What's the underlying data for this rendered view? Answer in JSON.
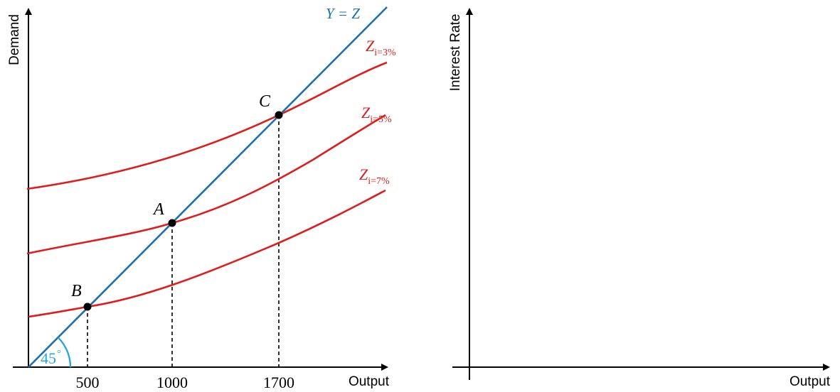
{
  "colors": {
    "demand_curve": "#dc1e1e",
    "line_45": "#1f6fb0",
    "angle_arc": "#2aa7d8",
    "axes": "#000000"
  },
  "left_panel": {
    "ylabel": "Demand",
    "xlabel": "Output",
    "line_label": "Y = Z",
    "angle_label": "45",
    "angle_degree": "°",
    "curves": [
      {
        "label_main": "Z",
        "label_sub": "i=3%"
      },
      {
        "label_main": "Z",
        "label_sub": "i=5%"
      },
      {
        "label_main": "Z",
        "label_sub": "i=7%"
      }
    ],
    "points": [
      {
        "label": "A",
        "x": "1000"
      },
      {
        "label": "B",
        "x": "500"
      },
      {
        "label": "C",
        "x": "1700"
      }
    ],
    "xticks": [
      "500",
      "1000",
      "1700"
    ]
  },
  "right_panel": {
    "ylabel": "Interest Rate",
    "xlabel": "Output"
  }
}
